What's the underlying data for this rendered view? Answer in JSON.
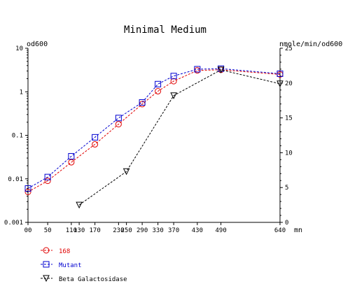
{
  "chart_data": {
    "type": "line",
    "title": "Minimal Medium",
    "left_axis": {
      "label": "od600",
      "scale": "log",
      "range": [
        0.001,
        10
      ],
      "ticks": [
        0.001,
        0.01,
        0.1,
        1,
        10
      ],
      "tick_labels": [
        "0.001",
        "0.01",
        "0.1",
        "1",
        "10"
      ]
    },
    "right_axis": {
      "label": "nmole/min/od600",
      "scale": "linear",
      "range": [
        0,
        25
      ],
      "ticks": [
        0,
        5,
        10,
        15,
        20,
        25
      ],
      "tick_labels": [
        "0",
        "5",
        "10",
        "15",
        "20",
        "25"
      ]
    },
    "x_axis": {
      "unit": "mn",
      "range": [
        0,
        640
      ],
      "ticks": [
        0,
        50,
        110,
        130,
        170,
        230,
        250,
        290,
        330,
        370,
        430,
        490,
        640
      ],
      "tick_labels": [
        "00",
        "50",
        "110",
        "130",
        "170",
        "230",
        "250",
        "290",
        "330",
        "370",
        "430",
        "490",
        "640"
      ]
    },
    "grid": false,
    "legend_position": "bottom-left",
    "series": [
      {
        "name": "168",
        "axis": "left",
        "color": "#e00000",
        "marker": "circle",
        "x": [
          0,
          50,
          110,
          170,
          230,
          290,
          330,
          370,
          430,
          490,
          640
        ],
        "y": [
          0.005,
          0.009,
          0.024,
          0.062,
          0.18,
          0.52,
          1.03,
          1.75,
          3.1,
          3.2,
          2.5
        ]
      },
      {
        "name": "Mutant",
        "axis": "left",
        "color": "#0000d0",
        "marker": "square",
        "x": [
          0,
          50,
          110,
          170,
          230,
          290,
          330,
          370,
          430,
          490,
          640
        ],
        "y": [
          0.006,
          0.011,
          0.033,
          0.09,
          0.25,
          0.57,
          1.5,
          2.3,
          3.3,
          3.4,
          2.6
        ]
      },
      {
        "name": "Beta Galactosidase",
        "axis": "right",
        "color": "#000000",
        "marker": "triangle-down",
        "x": [
          130,
          250,
          370,
          490,
          640
        ],
        "y": [
          2.5,
          7.3,
          18.2,
          21.9,
          19.9
        ]
      }
    ]
  }
}
